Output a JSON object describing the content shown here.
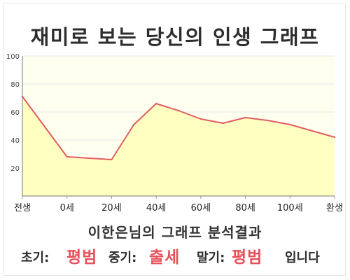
{
  "title": "재미로 보는 당신의 인생 그래프",
  "analysis_title": "이한은님의 그래프 분석결과",
  "phases": {
    "early_label": "초기:",
    "early_value": "평범",
    "middle_label": "중기:",
    "middle_value": "출세",
    "late_label": "말기:",
    "late_value": "평범",
    "ending": "입니다"
  },
  "colors": {
    "line": "#e35d62",
    "fill": "#ffffc2",
    "plot_bg": "#fffff0",
    "grid": "#e6e6e6",
    "accent": "#e8505b"
  },
  "chart_data": {
    "type": "area",
    "title": "재미로 보는 당신의 인생 그래프",
    "xlabel": "",
    "ylabel": "",
    "x_tick_labels": [
      "전생",
      "0세",
      "20세",
      "40세",
      "60세",
      "80세",
      "100세",
      "환생"
    ],
    "ylim": [
      0,
      100
    ],
    "y_ticks": [
      20,
      40,
      60,
      80,
      100
    ],
    "grid": "horizontal",
    "series": [
      {
        "x": [
          "전생",
          "0세",
          "10세",
          "20세",
          "30세",
          "40세",
          "50세",
          "60세",
          "70세",
          "80세",
          "90세",
          "100세",
          "환생"
        ],
        "values": [
          71,
          28,
          27,
          26,
          51,
          66,
          61,
          55,
          52,
          56,
          54,
          51,
          42
        ]
      }
    ]
  }
}
